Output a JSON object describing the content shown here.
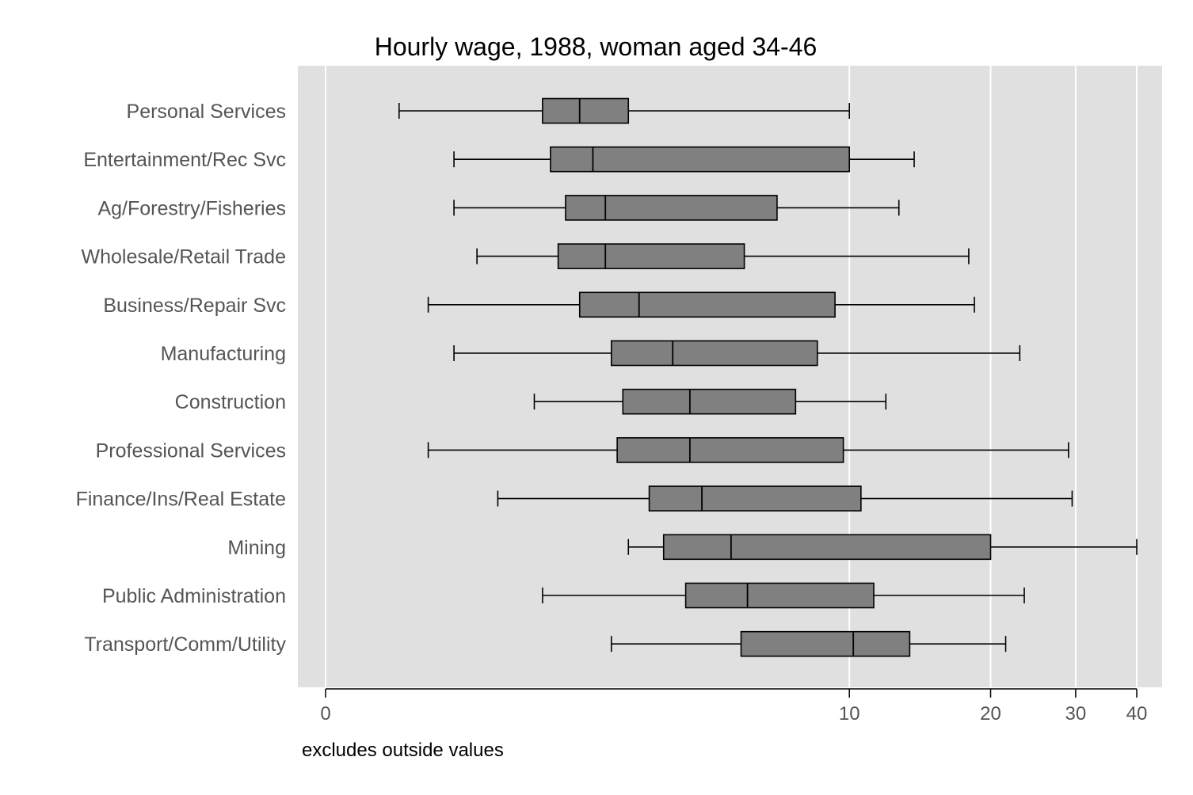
{
  "chart_data": {
    "type": "box",
    "orientation": "horizontal",
    "title": "Hourly wage, 1988, woman aged 34-46",
    "note": "excludes outside values",
    "xlabel": "",
    "ylabel": "",
    "x_scale": "log(x+1)",
    "xlim": [
      0,
      40
    ],
    "xticks": [
      0,
      10,
      20,
      30,
      40
    ],
    "grid": true,
    "box_color": "#808080",
    "plot_bg": "#e0e0e0",
    "categories": [
      "Personal Services",
      "Entertainment/Rec Svc",
      "Ag/Forestry/Fisheries",
      "Wholesale/Retail Trade",
      "Business/Repair Svc",
      "Manufacturing",
      "Construction",
      "Professional Services",
      "Finance/Ins/Real Estate",
      "Mining",
      "Public Administration",
      "Transport/Comm/Utility"
    ],
    "boxes": [
      {
        "whisker_low": 0.4,
        "q1": 1.7,
        "median": 2.2,
        "q3": 3.0,
        "whisker_high": 10.0
      },
      {
        "whisker_low": 0.8,
        "q1": 1.8,
        "median": 2.4,
        "q3": 10.0,
        "whisker_high": 13.8
      },
      {
        "whisker_low": 0.8,
        "q1": 2.0,
        "median": 2.6,
        "q3": 6.9,
        "whisker_high": 12.8
      },
      {
        "whisker_low": 1.0,
        "q1": 1.9,
        "median": 2.6,
        "q3": 5.8,
        "whisker_high": 18.0
      },
      {
        "whisker_low": 0.6,
        "q1": 2.2,
        "median": 3.2,
        "q3": 9.3,
        "whisker_high": 18.5
      },
      {
        "whisker_low": 0.8,
        "q1": 2.7,
        "median": 3.9,
        "q3": 8.5,
        "whisker_high": 23.0
      },
      {
        "whisker_low": 1.6,
        "q1": 2.9,
        "median": 4.3,
        "q3": 7.6,
        "whisker_high": 12.0
      },
      {
        "whisker_low": 0.6,
        "q1": 2.8,
        "median": 4.3,
        "q3": 9.7,
        "whisker_high": 29.0
      },
      {
        "whisker_low": 1.2,
        "q1": 3.4,
        "median": 4.6,
        "q3": 10.6,
        "whisker_high": 29.5
      },
      {
        "whisker_low": 3.0,
        "q1": 3.7,
        "median": 5.4,
        "q3": 20.0,
        "whisker_high": 40.0
      },
      {
        "whisker_low": 1.7,
        "q1": 4.2,
        "median": 5.9,
        "q3": 11.3,
        "whisker_high": 23.5
      },
      {
        "whisker_low": 2.7,
        "q1": 5.7,
        "median": 10.2,
        "q3": 13.5,
        "whisker_high": 21.5
      }
    ]
  }
}
